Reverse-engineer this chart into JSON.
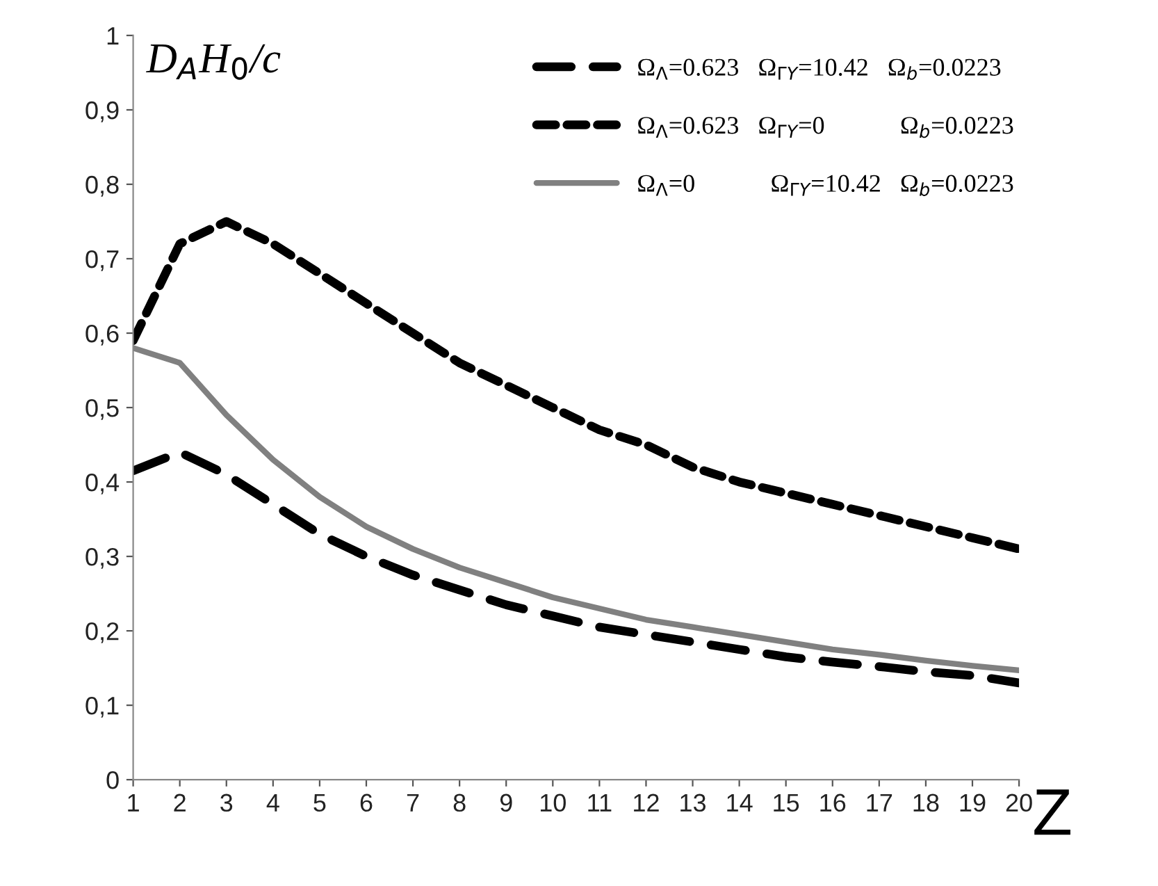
{
  "chart_data": {
    "type": "line",
    "xlabel": "Z",
    "ylabel": "D$_{A}$H$_{0}$/c",
    "categories": [
      "1",
      "2",
      "3",
      "4",
      "5",
      "6",
      "7",
      "8",
      "9",
      "10",
      "11",
      "12",
      "13",
      "14",
      "15",
      "16",
      "17",
      "18",
      "19",
      "20"
    ],
    "ylim": [
      0,
      1
    ],
    "yticks": [
      0,
      {
        "value": 0.1,
        "label": "0,1"
      },
      {
        "value": 0.2,
        "label": "0,2"
      },
      {
        "value": 0.3,
        "label": "0,3"
      },
      {
        "value": 0.4,
        "label": "0,4"
      },
      {
        "value": 0.5,
        "label": "0,5"
      },
      {
        "value": 0.6,
        "label": "0,6"
      },
      {
        "value": 0.7,
        "label": "0,7"
      },
      {
        "value": 0.8,
        "label": "0,8"
      },
      {
        "value": 0.9,
        "label": "0,9"
      },
      1
    ],
    "grid": false,
    "legend": "top right",
    "marker": "none",
    "series": [
      {
        "name": "Ω$_{Λ}$=0.623   Ω$_{ΓY}$=10.42   Ω$_{b}$=0.0223",
        "color": "#000000",
        "line_style": "dashed",
        "values": [
          0.415,
          0.44,
          0.41,
          0.37,
          0.33,
          0.3,
          0.275,
          0.255,
          0.235,
          0.22,
          0.205,
          0.195,
          0.185,
          0.175,
          0.165,
          0.158,
          0.152,
          0.145,
          0.14,
          0.13
        ]
      },
      {
        "name": "Ω$_{Λ}$=0.623   Ω$_{ΓY}$=0            Ω$_{b}$=0.0223",
        "color": "#000000",
        "line_style": "dotted",
        "values": [
          0.59,
          0.72,
          0.75,
          0.72,
          0.68,
          0.64,
          0.6,
          0.56,
          0.53,
          0.5,
          0.47,
          0.45,
          0.42,
          0.4,
          0.385,
          0.37,
          0.355,
          0.34,
          0.325,
          0.31
        ]
      },
      {
        "name": "Ω$_{Λ}$=0            Ω$_{ΓY}$=10.42   Ω$_{b}$=0.0223",
        "color": "#808080",
        "line_style": "solid",
        "values": [
          0.58,
          0.56,
          0.49,
          0.43,
          0.38,
          0.34,
          0.31,
          0.285,
          0.265,
          0.245,
          0.23,
          0.215,
          0.205,
          0.195,
          0.185,
          0.175,
          0.168,
          0.16,
          0.153,
          0.147
        ]
      }
    ]
  }
}
